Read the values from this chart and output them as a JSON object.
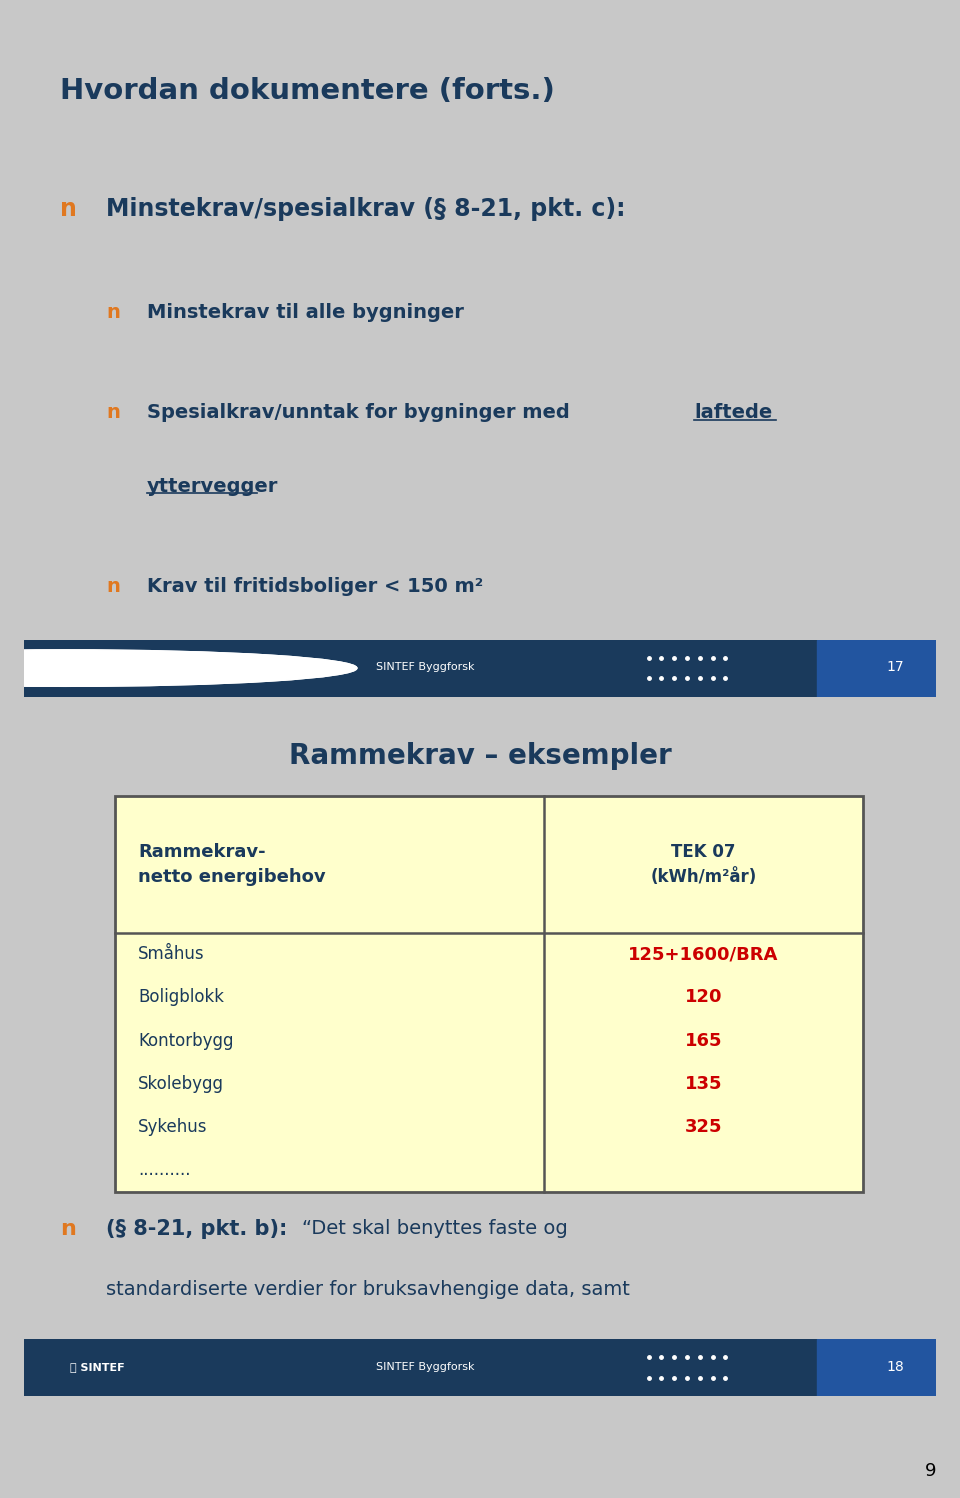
{
  "slide1": {
    "title": "Hvordan dokumentere (forts.)",
    "title_color": "#1a3a5c",
    "bg_color": "#ffffff",
    "bullet_color": "#e07820",
    "text_color": "#1a3a5c",
    "footer_bg": "#1a3a5c",
    "footer_text": "SINTEF Byggforsk",
    "page_num": "17"
  },
  "slide2": {
    "title": "Rammekrav – eksempler",
    "title_color": "#1a3a5c",
    "bg_color": "#ffffff",
    "table_bg": "#ffffcc",
    "table_border": "#555555",
    "header_text_color": "#1a3a5c",
    "data_text_color": "#cc0000",
    "left_col_color": "#1a3a5c",
    "col1_header": "Rammekrav-\nnetto energibehov",
    "col2_header": "TEK 07\n(kWh/m²år)",
    "rows": [
      [
        "Småhus",
        "125+1600/BRA"
      ],
      [
        "Boligblokk",
        "120"
      ],
      [
        "Kontorbygg",
        "165"
      ],
      [
        "Skolebygg",
        "135"
      ],
      [
        "Sykehus",
        "325"
      ],
      [
        "..........",
        ""
      ]
    ],
    "bullet_color": "#e07820",
    "text_color": "#1a3a5c",
    "note_bold": "§ 8-21, pkt. b):",
    "footer_bg": "#1a3a5c",
    "footer_text": "SINTEF Byggforsk",
    "page_num": "18"
  },
  "page_label": "9"
}
